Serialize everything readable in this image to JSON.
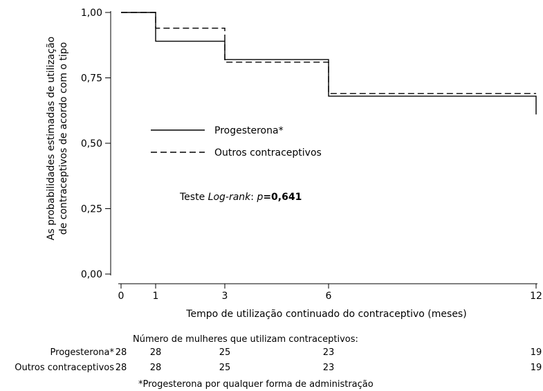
{
  "chart_data": {
    "type": "line",
    "subtype": "kaplan-meier-step",
    "ylabel_line1": "As probabilidades estimadas de utilização",
    "ylabel_line2": "de contraceptivos de acordo com o tipo",
    "xlabel": "Tempo de utilização continuado do contraceptivo (meses)",
    "xlim": [
      0,
      12
    ],
    "ylim": [
      0,
      1
    ],
    "x_ticks": [
      "0",
      "1",
      "3",
      "6",
      "12"
    ],
    "x_tick_values": [
      0,
      1,
      3,
      6,
      12
    ],
    "y_ticks": [
      "0,00",
      "0,25",
      "0,50",
      "0,75",
      "1,00"
    ],
    "y_tick_values": [
      0,
      0.25,
      0.5,
      0.75,
      1.0
    ],
    "grid": false,
    "legend_position": "middle-left",
    "series": [
      {
        "name": "Progesterona*",
        "style": "solid",
        "color": "#000000",
        "x": [
          0,
          1,
          3,
          6,
          12
        ],
        "y": [
          1.0,
          0.89,
          0.82,
          0.68,
          0.61
        ]
      },
      {
        "name": "Outros contraceptivos",
        "style": "dashed",
        "color": "#000000",
        "x": [
          0,
          1,
          3,
          6,
          12
        ],
        "y": [
          1.0,
          0.94,
          0.81,
          0.69,
          0.69
        ]
      }
    ],
    "annotation": {
      "prefix": "Teste ",
      "test_name": "Log-rank",
      "sep": ": ",
      "p_label": "p",
      "p_value": "=0,641"
    }
  },
  "risk_table": {
    "title": "Número de mulheres que utilizam contraceptivos:",
    "rows": [
      {
        "label": "Progesterona*",
        "values": [
          "28",
          "28",
          "25",
          "23",
          "19"
        ]
      },
      {
        "label": "Outros contraceptivos",
        "values": [
          "28",
          "28",
          "25",
          "23",
          "19"
        ]
      }
    ]
  },
  "footnote": "*Progesterona por qualquer forma de administração"
}
